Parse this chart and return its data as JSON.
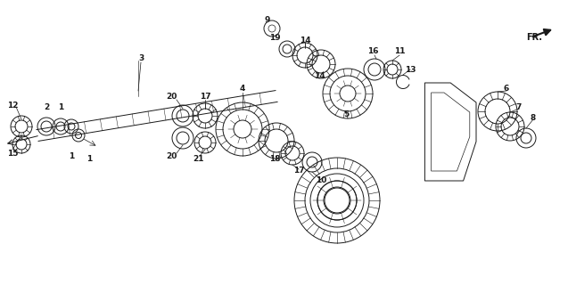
{
  "bg_color": "#ffffff",
  "line_color": "#1a1a1a",
  "figsize": [
    6.37,
    3.2
  ],
  "dpi": 100
}
